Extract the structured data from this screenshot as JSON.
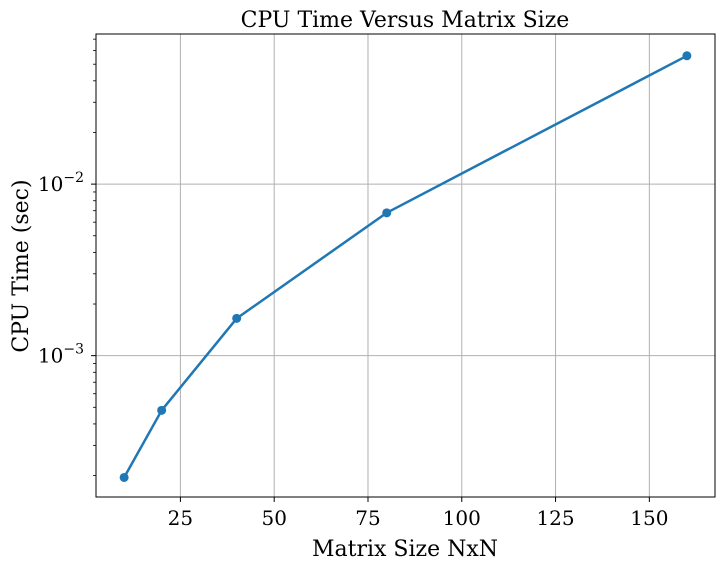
{
  "chart_data": {
    "type": "line",
    "title": "CPU Time Versus Matrix Size",
    "xlabel": "Matrix Size NxN",
    "ylabel": "CPU Time (sec)",
    "x": [
      10,
      20,
      40,
      80,
      160
    ],
    "series": [
      {
        "values": [
          0.000195,
          0.00048,
          0.00165,
          0.0068,
          0.056
        ],
        "color": "#1f77b4"
      }
    ],
    "xlim": [
      2.5,
      167.5
    ],
    "ylim": [
      0.00015,
      0.075
    ],
    "yscale": "log",
    "xticks": [
      25,
      50,
      75,
      100,
      125,
      150
    ],
    "xtick_labels": [
      "25",
      "50",
      "75",
      "100",
      "125",
      "150"
    ],
    "yticks": [
      0.001,
      0.01
    ],
    "ytick_labels": [
      {
        "base": "10",
        "exp": "−3"
      },
      {
        "base": "10",
        "exp": "−2"
      }
    ],
    "grid": true,
    "marker": "circle"
  }
}
